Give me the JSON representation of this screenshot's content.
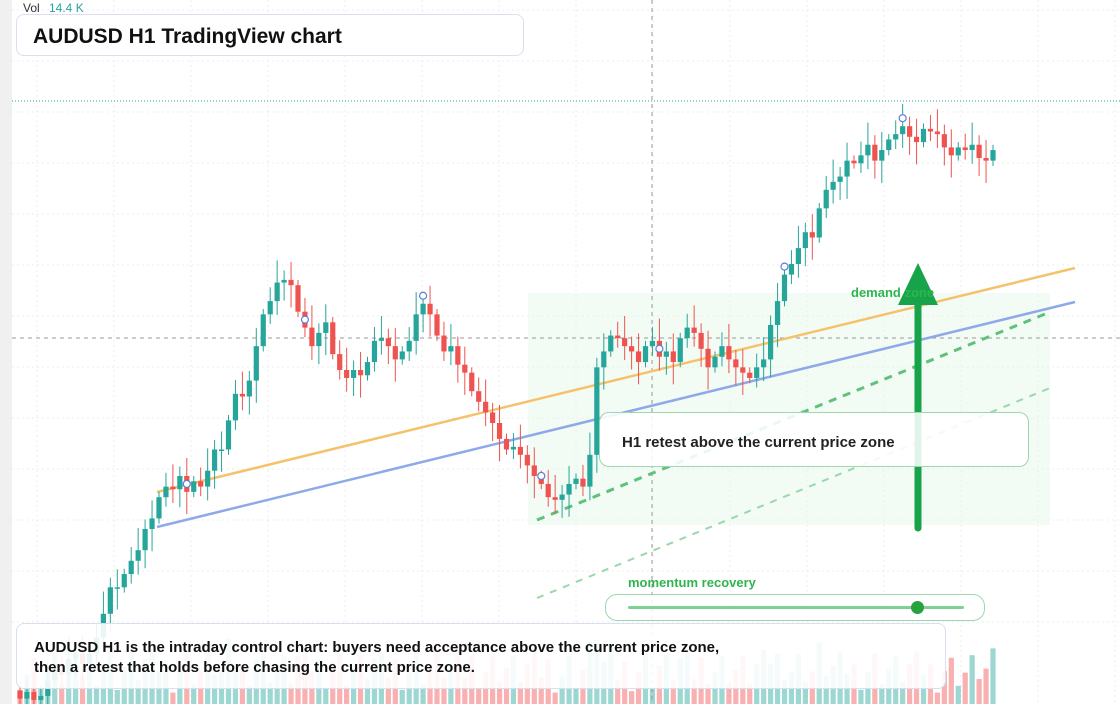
{
  "header": {
    "vol_label": "Vol",
    "vol_value": "14.4 K",
    "title": "AUDUSD H1 TradingView chart"
  },
  "annotations": {
    "retest": "H1 retest above the current price zone",
    "demand_zone": "demand zone",
    "momentum": "momentum recovery",
    "note": "AUDUSD H1 is the intraday control chart: buyers need acceptance above the current price zone, then a retest that holds before chasing the current price zone."
  },
  "momentum_level": 0.86,
  "colors": {
    "up": "#26a69a",
    "down": "#ef5350",
    "ma_fast": "#f5c26b",
    "ma_slow": "#8ea9e8",
    "accent": "#16a34a"
  },
  "chart_data": {
    "type": "candlestick",
    "symbol": "AUDUSD",
    "timeframe": "H1",
    "grid": true,
    "current_price_line": true,
    "closes": [
      -4,
      -1.5,
      -4.5,
      -3,
      3,
      7,
      5,
      11,
      13,
      9,
      13,
      19,
      28,
      38,
      38,
      43,
      48,
      52,
      60,
      64,
      72,
      76,
      75,
      80,
      74,
      78,
      76,
      82,
      90,
      90,
      101,
      111,
      110,
      116,
      129,
      141,
      146,
      153,
      154,
      152,
      142,
      136,
      129,
      134,
      138,
      126,
      120,
      117,
      120,
      118,
      123,
      131,
      132,
      129,
      124,
      127,
      131,
      141,
      145,
      141,
      133,
      127,
      129,
      122,
      119,
      112,
      108,
      104,
      100,
      94,
      90,
      91,
      88,
      84,
      80,
      77,
      72,
      71,
      73,
      77,
      79,
      76,
      88,
      121,
      127,
      133,
      132,
      129,
      127,
      123,
      129,
      131,
      125,
      127,
      123,
      132,
      136,
      134,
      128,
      121,
      125,
      129,
      124,
      121,
      119,
      117,
      121,
      124,
      137,
      146,
      156,
      160,
      166,
      172,
      170,
      181,
      188,
      191,
      193,
      199,
      198,
      201,
      205,
      199,
      203,
      207,
      209,
      212,
      208,
      206,
      211,
      210,
      209,
      204,
      201,
      204,
      203,
      205,
      200,
      199,
      203
    ]
  }
}
